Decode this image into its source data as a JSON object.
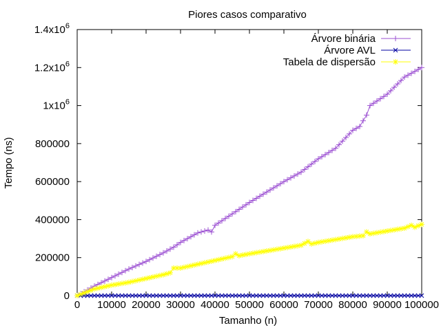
{
  "chart_data": {
    "type": "line",
    "title": "Piores casos comparativo",
    "xlabel": "Tamanho (n)",
    "ylabel": "Tempo (ns)",
    "xlim": [
      0,
      100000
    ],
    "ylim": [
      0,
      1400000
    ],
    "grid": false,
    "legend_position": "top-right",
    "x_ticks": [
      {
        "value": 0,
        "label": "0"
      },
      {
        "value": 10000,
        "label": "10000"
      },
      {
        "value": 20000,
        "label": "20000"
      },
      {
        "value": 30000,
        "label": "30000"
      },
      {
        "value": 40000,
        "label": "40000"
      },
      {
        "value": 50000,
        "label": "50000"
      },
      {
        "value": 60000,
        "label": "60000"
      },
      {
        "value": 70000,
        "label": "70000"
      },
      {
        "value": 80000,
        "label": "80000"
      },
      {
        "value": 90000,
        "label": "90000"
      },
      {
        "value": 100000,
        "label": "100000"
      }
    ],
    "y_ticks": [
      {
        "value": 0,
        "label": "0"
      },
      {
        "value": 200000,
        "label": "200000"
      },
      {
        "value": 400000,
        "label": "400000"
      },
      {
        "value": 600000,
        "label": "600000"
      },
      {
        "value": 800000,
        "label": "800000"
      },
      {
        "value": 1000000,
        "label": "1x10",
        "sup": "6"
      },
      {
        "value": 1200000,
        "label": "1.2x10",
        "sup": "6"
      },
      {
        "value": 1400000,
        "label": "1.4x10",
        "sup": "6"
      }
    ],
    "series": [
      {
        "name": "Árvore binária",
        "color": "#9b4fd2",
        "marker": "plus",
        "x": [
          0,
          5000,
          10000,
          15000,
          20000,
          25000,
          28000,
          30000,
          35000,
          38000,
          39000,
          40000,
          45000,
          50000,
          55000,
          60000,
          65000,
          70000,
          75000,
          80000,
          82000,
          84000,
          85000,
          90000,
          95000,
          100000
        ],
        "y": [
          0,
          50000,
          95000,
          140000,
          180000,
          225000,
          255000,
          280000,
          330000,
          345000,
          335000,
          370000,
          430000,
          490000,
          545000,
          600000,
          650000,
          720000,
          775000,
          870000,
          890000,
          950000,
          1000000,
          1060000,
          1150000,
          1200000
        ]
      },
      {
        "name": "Árvore AVL",
        "color": "#0000a0",
        "marker": "x",
        "x": [
          0,
          10000,
          20000,
          30000,
          40000,
          50000,
          60000,
          70000,
          80000,
          90000,
          100000
        ],
        "y": [
          0,
          0,
          0,
          0,
          0,
          0,
          0,
          0,
          0,
          0,
          0
        ]
      },
      {
        "name": "Tabela de dispersão",
        "color": "#ffff00",
        "marker": "star",
        "x": [
          0,
          5000,
          10000,
          15000,
          20000,
          25000,
          27000,
          28000,
          30000,
          35000,
          40000,
          45000,
          46000,
          47000,
          50000,
          55000,
          60000,
          65000,
          67000,
          68000,
          70000,
          75000,
          80000,
          83000,
          84000,
          85000,
          90000,
          95000,
          97000,
          98000,
          100000
        ],
        "y": [
          0,
          35000,
          55000,
          70000,
          90000,
          110000,
          120000,
          145000,
          145000,
          165000,
          185000,
          205000,
          220000,
          210000,
          220000,
          235000,
          250000,
          265000,
          285000,
          272000,
          280000,
          295000,
          310000,
          315000,
          335000,
          325000,
          340000,
          355000,
          370000,
          360000,
          375000
        ]
      }
    ]
  }
}
